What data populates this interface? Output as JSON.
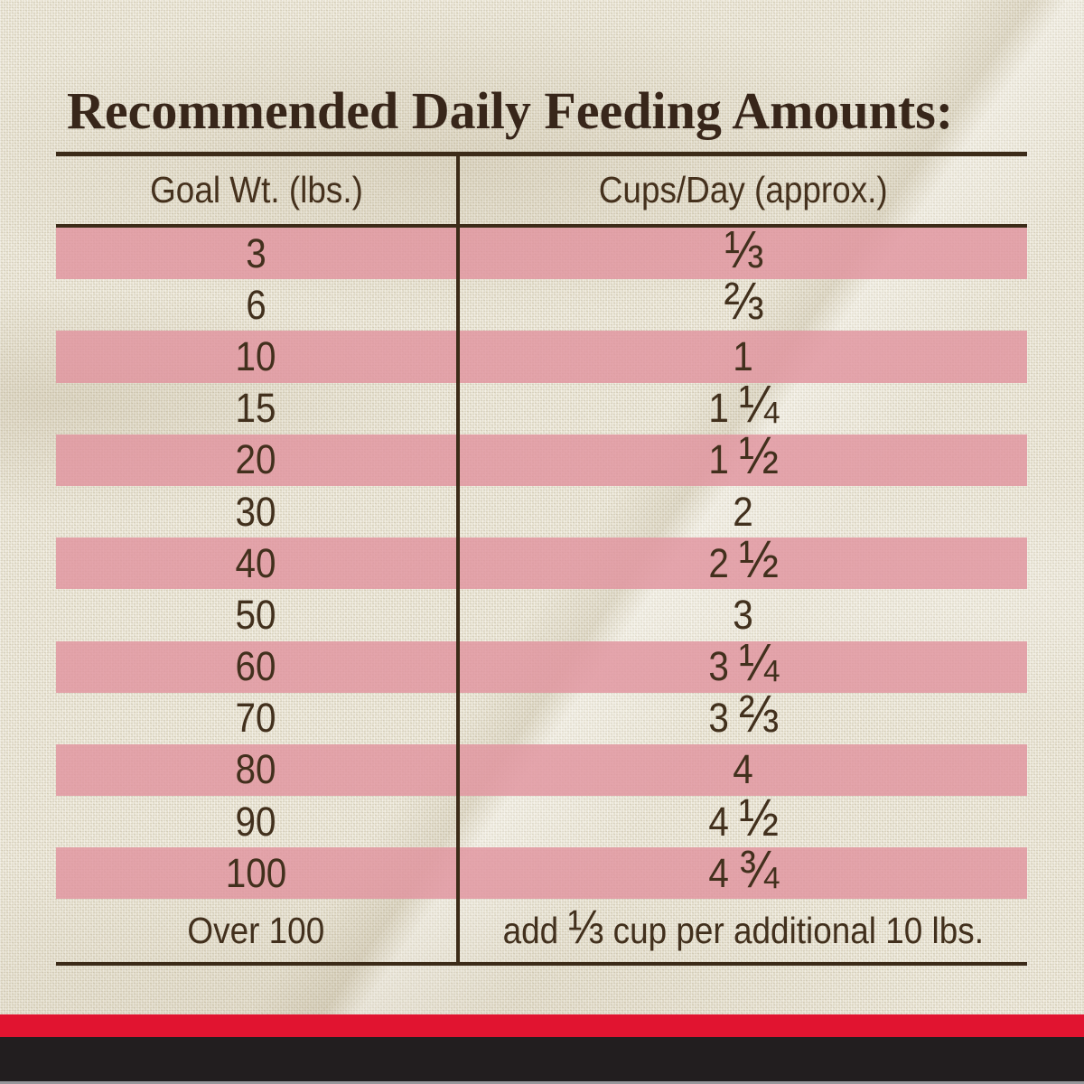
{
  "title": "Recommended Daily Feeding Amounts:",
  "table": {
    "columns": [
      "Goal Wt. (lbs.)",
      "Cups/Day (approx.)"
    ],
    "rows": [
      {
        "weight": "3",
        "cups": "⅓"
      },
      {
        "weight": "6",
        "cups": "⅔"
      },
      {
        "weight": "10",
        "cups": "1"
      },
      {
        "weight": "15",
        "cups": "1 ¼"
      },
      {
        "weight": "20",
        "cups": "1 ½"
      },
      {
        "weight": "30",
        "cups": "2"
      },
      {
        "weight": "40",
        "cups": "2 ½"
      },
      {
        "weight": "50",
        "cups": "3"
      },
      {
        "weight": "60",
        "cups": "3 ¼"
      },
      {
        "weight": "70",
        "cups": "3 ⅔"
      },
      {
        "weight": "80",
        "cups": "4"
      },
      {
        "weight": "90",
        "cups": "4 ½"
      },
      {
        "weight": "100",
        "cups": "4 ¾"
      },
      {
        "weight": "Over 100",
        "cups": "add ⅓ cup per additional 10 lbs."
      }
    ]
  },
  "colors": {
    "fabric_cream": "#e9e4d3",
    "stripe_pink": "#e1a0a7",
    "text_brown": "#42301d",
    "title_brown": "#38261a",
    "table_line_brown": "#3c2b18",
    "bottom_red": "#e11430",
    "bottom_black": "#221e1f",
    "bottom_gray": "#96969a"
  }
}
